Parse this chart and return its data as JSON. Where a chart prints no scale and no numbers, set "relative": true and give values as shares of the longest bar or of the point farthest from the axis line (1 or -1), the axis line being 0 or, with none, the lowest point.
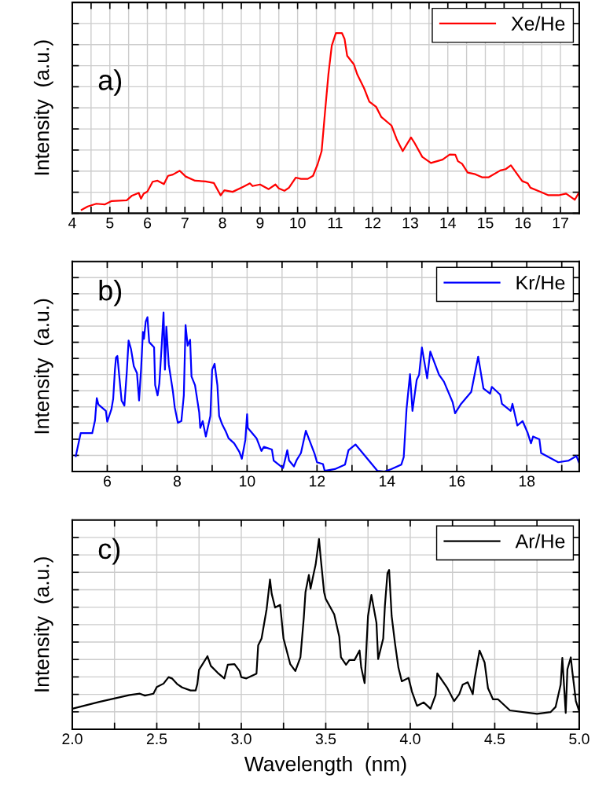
{
  "chart_data": [
    {
      "type": "line",
      "relative": true,
      "ylabel": "Intensity  (a.u.)",
      "annotations": [
        "a)"
      ],
      "legend": "top right",
      "grid": true,
      "tick_labels": "x",
      "xlim": [
        4,
        17.5
      ],
      "xticks": [
        4,
        {
          "value": 4.5,
          "label": null
        },
        5,
        {
          "value": 5.5,
          "label": null
        },
        6,
        {
          "value": 6.5,
          "label": null
        },
        7,
        {
          "value": 7.5,
          "label": null
        },
        8,
        {
          "value": 8.5,
          "label": null
        },
        9,
        {
          "value": 9.5,
          "label": null
        },
        10,
        {
          "value": 10.5,
          "label": null
        },
        11,
        {
          "value": 11.5,
          "label": null
        },
        12,
        {
          "value": 12.5,
          "label": null
        },
        13,
        {
          "value": 13.5,
          "label": null
        },
        14,
        {
          "value": 14.5,
          "label": null
        },
        15,
        {
          "value": 15.5,
          "label": null
        },
        16,
        {
          "value": 16.5,
          "label": null
        },
        17,
        {
          "value": 17.5,
          "label": null
        }
      ],
      "x": [
        4.25,
        4.41,
        4.64,
        4.86,
        5.05,
        5.45,
        5.59,
        5.77,
        5.83,
        5.9,
        6.0,
        6.14,
        6.27,
        6.44,
        6.55,
        6.68,
        6.86,
        7.02,
        7.27,
        7.55,
        7.77,
        7.95,
        8.05,
        8.27,
        8.55,
        8.73,
        8.8,
        9.0,
        9.23,
        9.41,
        9.5,
        9.65,
        9.77,
        9.95,
        10.09,
        10.27,
        10.41,
        10.53,
        10.64,
        10.73,
        10.82,
        10.91,
        11.02,
        11.18,
        11.25,
        11.32,
        11.5,
        11.59,
        11.77,
        11.91,
        12.09,
        12.23,
        12.5,
        12.64,
        12.8,
        13.02,
        13.11,
        13.32,
        13.55,
        13.86,
        14.05,
        14.2,
        14.27,
        14.38,
        14.53,
        14.73,
        14.91,
        15.09,
        15.4,
        15.54,
        15.68,
        15.98,
        16.13,
        16.2,
        16.45,
        16.68,
        16.95,
        17.15,
        17.38,
        17.5
      ],
      "series": [
        {
          "name": "Xe/He",
          "color": "#ff0000",
          "values": [
            0.019,
            0.038,
            0.053,
            0.049,
            0.068,
            0.072,
            0.098,
            0.113,
            0.081,
            0.109,
            0.121,
            0.175,
            0.181,
            0.162,
            0.208,
            0.215,
            0.236,
            0.204,
            0.181,
            0.177,
            0.168,
            0.1,
            0.128,
            0.119,
            0.147,
            0.166,
            0.151,
            0.16,
            0.134,
            0.16,
            0.138,
            0.125,
            0.142,
            0.198,
            0.191,
            0.191,
            0.208,
            0.27,
            0.345,
            0.562,
            0.77,
            0.93,
            1.0,
            1.0,
            0.968,
            0.874,
            0.826,
            0.77,
            0.694,
            0.619,
            0.591,
            0.534,
            0.487,
            0.411,
            0.345,
            0.421,
            0.392,
            0.313,
            0.279,
            0.298,
            0.326,
            0.325,
            0.289,
            0.275,
            0.226,
            0.217,
            0.2,
            0.2,
            0.238,
            0.245,
            0.266,
            0.179,
            0.166,
            0.142,
            0.121,
            0.1,
            0.1,
            0.109,
            0.075,
            0.117
          ]
        }
      ]
    },
    {
      "type": "line",
      "relative": true,
      "ylabel": "Intensity  (a.u.)",
      "annotations": [
        "b)"
      ],
      "legend": "top right",
      "grid": true,
      "tick_labels": "x",
      "xlim": [
        5,
        19.5
      ],
      "xticks": [
        {
          "value": 5,
          "label": null
        },
        6,
        {
          "value": 7,
          "label": null
        },
        8,
        {
          "value": 9,
          "label": null
        },
        10,
        {
          "value": 11,
          "label": null
        },
        12,
        {
          "value": 13,
          "label": null
        },
        14,
        {
          "value": 15,
          "label": null
        },
        16,
        {
          "value": 17,
          "label": null
        },
        18,
        {
          "value": 19,
          "label": null
        }
      ],
      "x": [
        5.1,
        5.24,
        5.57,
        5.65,
        5.7,
        5.75,
        5.96,
        6.0,
        6.12,
        6.17,
        6.22,
        6.25,
        6.29,
        6.34,
        6.41,
        6.49,
        6.56,
        6.61,
        6.68,
        6.76,
        6.85,
        6.91,
        6.97,
        7.02,
        7.05,
        7.1,
        7.15,
        7.2,
        7.34,
        7.37,
        7.44,
        7.49,
        7.56,
        7.61,
        7.65,
        7.69,
        7.76,
        7.88,
        7.93,
        8.02,
        8.12,
        8.19,
        8.24,
        8.3,
        8.37,
        8.41,
        8.51,
        8.63,
        8.66,
        8.73,
        8.82,
        8.95,
        9.0,
        9.07,
        9.15,
        9.2,
        9.29,
        9.39,
        9.47,
        9.63,
        9.78,
        9.85,
        9.95,
        10.0,
        10.02,
        10.27,
        10.41,
        10.48,
        10.71,
        10.76,
        11.03,
        11.15,
        11.2,
        11.34,
        11.42,
        11.54,
        11.68,
        11.78,
        11.93,
        12.0,
        12.17,
        12.22,
        12.51,
        12.8,
        12.9,
        13.1,
        13.73,
        13.93,
        14.12,
        14.41,
        14.48,
        14.56,
        14.66,
        14.73,
        14.85,
        14.92,
        15.0,
        15.15,
        15.24,
        15.49,
        15.63,
        15.88,
        15.95,
        16.12,
        16.41,
        16.61,
        16.76,
        16.95,
        17.0,
        17.24,
        17.29,
        17.54,
        17.59,
        17.73,
        17.88,
        18.02,
        18.12,
        18.18,
        18.36,
        18.41,
        18.9,
        19.2,
        19.42,
        19.49
      ],
      "series": [
        {
          "name": "Kr/He",
          "color": "#0000ff",
          "values": [
            0.097,
            0.241,
            0.241,
            0.321,
            0.461,
            0.42,
            0.381,
            0.313,
            0.392,
            0.457,
            0.64,
            0.716,
            0.726,
            0.608,
            0.446,
            0.414,
            0.629,
            0.823,
            0.769,
            0.662,
            0.619,
            0.446,
            0.651,
            0.877,
            0.834,
            0.942,
            0.97,
            0.813,
            0.78,
            0.543,
            0.478,
            0.554,
            0.802,
            1.0,
            0.64,
            0.909,
            0.672,
            0.5,
            0.403,
            0.306,
            0.317,
            0.478,
            0.92,
            0.791,
            0.828,
            0.597,
            0.543,
            0.371,
            0.274,
            0.317,
            0.22,
            0.349,
            0.64,
            0.677,
            0.543,
            0.349,
            0.295,
            0.252,
            0.209,
            0.177,
            0.123,
            0.08,
            0.198,
            0.36,
            0.274,
            0.209,
            0.129,
            0.155,
            0.138,
            0.069,
            0.022,
            0.134,
            0.069,
            0.032,
            0.073,
            0.116,
            0.256,
            0.198,
            0.112,
            0.058,
            0.047,
            0.004,
            0.015,
            0.043,
            0.134,
            0.17,
            0.004,
            0.0,
            0.015,
            0.043,
            0.091,
            0.392,
            0.612,
            0.381,
            0.575,
            0.608,
            0.78,
            0.586,
            0.754,
            0.608,
            0.565,
            0.435,
            0.366,
            0.425,
            0.5,
            0.722,
            0.522,
            0.489,
            0.532,
            0.483,
            0.425,
            0.381,
            0.425,
            0.289,
            0.317,
            0.246,
            0.177,
            0.22,
            0.203,
            0.116,
            0.058,
            0.069,
            0.097,
            0.058
          ]
        }
      ]
    },
    {
      "type": "line",
      "relative": true,
      "ylabel": "Intensity  (a.u.)",
      "xlabel": "Wavelength  (nm)",
      "annotations": [
        "c)"
      ],
      "legend": "top right",
      "grid": true,
      "tick_labels": "x",
      "xlim": [
        2.0,
        5.0
      ],
      "xticks": [
        {
          "value": 2.0,
          "label": "2.0"
        },
        {
          "value": 2.25,
          "label": null
        },
        {
          "value": 2.5,
          "label": "2.5"
        },
        {
          "value": 2.75,
          "label": null
        },
        {
          "value": 3.0,
          "label": "3.0"
        },
        {
          "value": 3.25,
          "label": null
        },
        {
          "value": 3.5,
          "label": "3.5"
        },
        {
          "value": 3.75,
          "label": null
        },
        {
          "value": 4.0,
          "label": "4.0"
        },
        {
          "value": 4.25,
          "label": null
        },
        {
          "value": 4.5,
          "label": "4.5"
        },
        {
          "value": 4.75,
          "label": null
        },
        {
          "value": 5.0,
          "label": "5.0"
        }
      ],
      "x": [
        2.0,
        2.16,
        2.34,
        2.4,
        2.43,
        2.48,
        2.5,
        2.54,
        2.57,
        2.59,
        2.62,
        2.65,
        2.7,
        2.73,
        2.74,
        2.75,
        2.8,
        2.82,
        2.86,
        2.9,
        2.92,
        2.96,
        2.99,
        3.0,
        3.03,
        3.09,
        3.1,
        3.12,
        3.15,
        3.17,
        3.18,
        3.2,
        3.23,
        3.25,
        3.29,
        3.32,
        3.35,
        3.37,
        3.38,
        3.4,
        3.41,
        3.43,
        3.44,
        3.46,
        3.47,
        3.49,
        3.5,
        3.55,
        3.58,
        3.59,
        3.62,
        3.64,
        3.67,
        3.7,
        3.71,
        3.73,
        3.75,
        3.77,
        3.8,
        3.81,
        3.84,
        3.85,
        3.865,
        3.875,
        3.89,
        3.91,
        3.93,
        3.95,
        3.99,
        4.01,
        4.04,
        4.08,
        4.12,
        4.15,
        4.16,
        4.22,
        4.26,
        4.29,
        4.31,
        4.34,
        4.37,
        4.38,
        4.41,
        4.44,
        4.46,
        4.49,
        4.52,
        4.59,
        4.75,
        4.83,
        4.86,
        4.89,
        4.9,
        4.92,
        4.93,
        4.95,
        4.96,
        4.97,
        4.98,
        5.0
      ],
      "series": [
        {
          "name": "Ar/He",
          "color": "#000000",
          "values": [
            0.108,
            0.144,
            0.18,
            0.187,
            0.177,
            0.187,
            0.222,
            0.24,
            0.274,
            0.267,
            0.238,
            0.22,
            0.204,
            0.204,
            0.238,
            0.312,
            0.384,
            0.333,
            0.297,
            0.267,
            0.339,
            0.342,
            0.306,
            0.274,
            0.267,
            0.292,
            0.441,
            0.477,
            0.631,
            0.787,
            0.712,
            0.64,
            0.654,
            0.477,
            0.342,
            0.306,
            0.378,
            0.586,
            0.721,
            0.811,
            0.739,
            0.825,
            0.865,
            1.0,
            0.901,
            0.721,
            0.685,
            0.604,
            0.486,
            0.378,
            0.339,
            0.364,
            0.364,
            0.414,
            0.324,
            0.243,
            0.595,
            0.706,
            0.559,
            0.369,
            0.477,
            0.649,
            0.82,
            0.838,
            0.595,
            0.45,
            0.324,
            0.252,
            0.27,
            0.198,
            0.123,
            0.141,
            0.108,
            0.18,
            0.294,
            0.216,
            0.148,
            0.184,
            0.234,
            0.247,
            0.184,
            0.261,
            0.414,
            0.351,
            0.216,
            0.157,
            0.157,
            0.099,
            0.081,
            0.09,
            0.117,
            0.234,
            0.375,
            0.086,
            0.315,
            0.378,
            0.297,
            0.225,
            0.148,
            0.094
          ]
        }
      ]
    }
  ]
}
